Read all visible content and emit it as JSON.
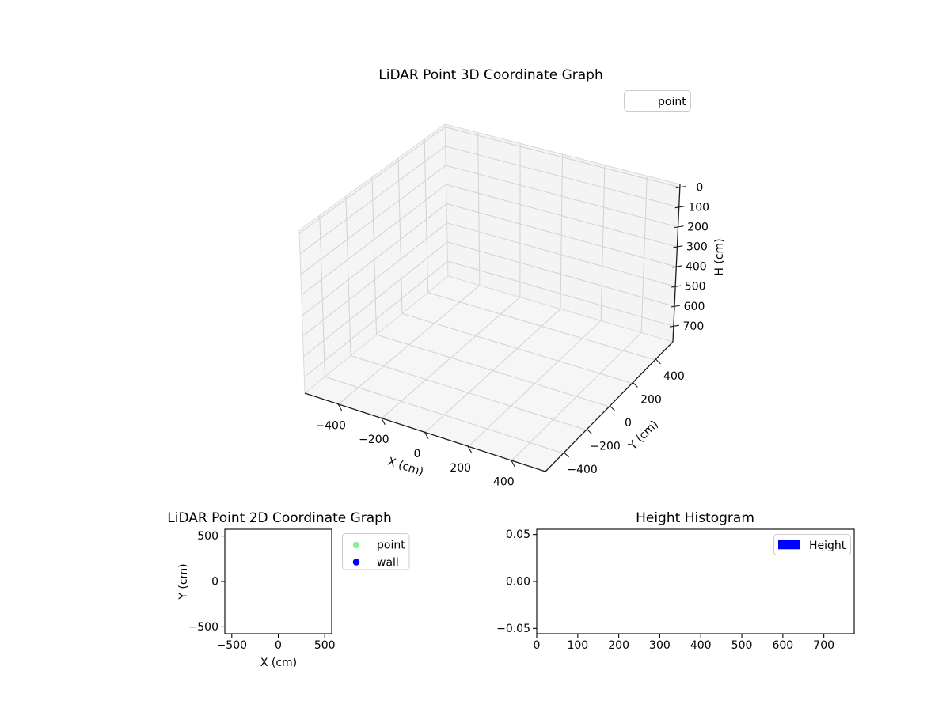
{
  "figure": {
    "background": "#ffffff"
  },
  "chart_data": [
    {
      "id": "lidar_3d",
      "type": "scatter",
      "projection": "3d",
      "title": "LiDAR Point 3D Coordinate Graph",
      "xlabel": "X (cm)",
      "ylabel": "Y (cm)",
      "zlabel": "H (cm)",
      "x_ticks": [
        -400,
        -200,
        0,
        200,
        400
      ],
      "y_ticks": [
        -400,
        -200,
        0,
        200,
        400
      ],
      "z_ticks": [
        0,
        100,
        200,
        300,
        400,
        500,
        600,
        700
      ],
      "xlim": [
        -556,
        556
      ],
      "ylim": [
        -556,
        556
      ],
      "zlim_top_to_bottom": [
        -15,
        778
      ],
      "z_axis_inverted": true,
      "grid": true,
      "legend": {
        "position": "upper-right",
        "entries": [
          {
            "label": "point",
            "marker": "none",
            "color": null
          }
        ]
      },
      "series": [
        {
          "name": "point",
          "points": []
        }
      ]
    },
    {
      "id": "lidar_2d",
      "type": "scatter",
      "title": "LiDAR Point 2D Coordinate Graph",
      "xlabel": "X (cm)",
      "ylabel": "Y (cm)",
      "x_ticks": [
        -500,
        0,
        500
      ],
      "y_ticks": [
        500,
        0,
        -500
      ],
      "xlim": [
        -575,
        575
      ],
      "ylim": [
        -575,
        575
      ],
      "grid": false,
      "legend": {
        "position": "outside-upper-right",
        "entries": [
          {
            "label": "point",
            "marker": "circle",
            "color": "#90ee90"
          },
          {
            "label": "wall",
            "marker": "circle",
            "color": "#0000ff"
          }
        ]
      },
      "series": [
        {
          "name": "point",
          "points": []
        },
        {
          "name": "wall",
          "points": []
        }
      ]
    },
    {
      "id": "height_histogram",
      "type": "bar",
      "title": "Height Histogram",
      "xlabel": "",
      "ylabel": "",
      "x_ticks": [
        0,
        100,
        200,
        300,
        400,
        500,
        600,
        700
      ],
      "y_ticks": [
        0.05,
        0.0,
        -0.05
      ],
      "y_tick_format": "fixed2",
      "xlim": [
        0,
        774
      ],
      "ylim": [
        -0.0556,
        0.0556
      ],
      "grid": false,
      "legend": {
        "position": "upper-right",
        "entries": [
          {
            "label": "Height",
            "marker": "rect",
            "color": "#0000ff"
          }
        ]
      },
      "values": []
    }
  ]
}
